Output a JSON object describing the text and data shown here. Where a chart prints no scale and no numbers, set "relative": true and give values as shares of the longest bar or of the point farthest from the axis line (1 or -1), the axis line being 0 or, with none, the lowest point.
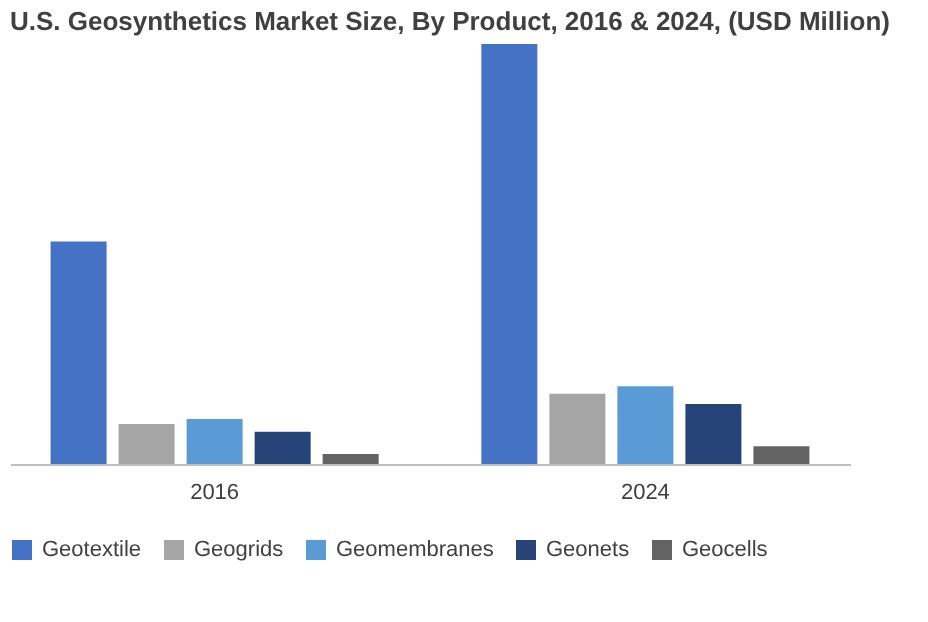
{
  "chart_data": {
    "type": "bar",
    "title": "U.S. Geosynthetics Market Size, By Product, 2016 & 2024, (USD Million)",
    "relative": true,
    "categories": [
      "2016",
      "2024"
    ],
    "series": [
      {
        "name": "Geotextile",
        "color": "#4472c4",
        "values": [
          0.53,
          1
        ]
      },
      {
        "name": "Geogrids",
        "color": "#a5a5a5",
        "values": [
          0.095,
          0.167
        ]
      },
      {
        "name": "Geomembranes",
        "color": "#5b9bd5",
        "values": [
          0.107,
          0.185
        ]
      },
      {
        "name": "Geonets",
        "color": "#264478",
        "values": [
          0.077,
          0.143
        ]
      },
      {
        "name": "Geocells",
        "color": "#636363",
        "values": [
          0.024,
          0.042
        ]
      }
    ],
    "grid": false,
    "legend": "bottom"
  }
}
